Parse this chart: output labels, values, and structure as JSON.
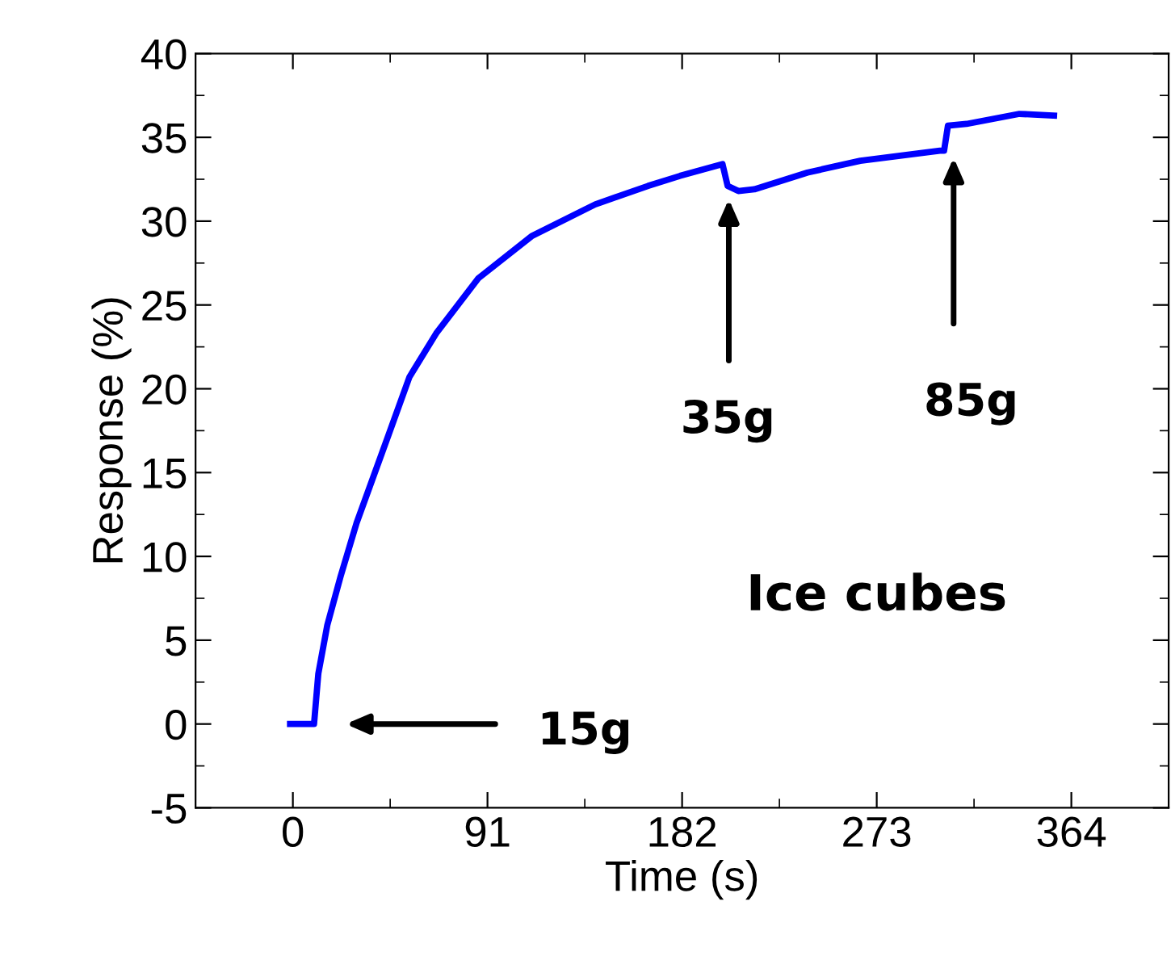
{
  "chart_data": {
    "type": "line",
    "xlabel": "Time (s)",
    "ylabel": "Response (%)",
    "xlim": [
      -45.5,
      409.5
    ],
    "xticks": [
      0,
      91,
      182,
      273,
      364
    ],
    "ylim": [
      -5,
      40
    ],
    "yticks": [
      -5,
      0,
      5,
      10,
      15,
      20,
      25,
      30,
      35,
      40
    ],
    "grid": false,
    "legend": false,
    "marker": "none",
    "line_style": "solid",
    "series": [
      {
        "color": "#0000ff",
        "x": [
          -1.3,
          9.9,
          11.9,
          16.1,
          22.3,
          29.8,
          44.6,
          54.5,
          67,
          86.8,
          111.6,
          141.4,
          166,
          181,
          200.9,
          203.3,
          208.3,
          215.8,
          240.6,
          265.3,
          302.5,
          304.5,
          306.3,
          315,
          339.7,
          355.9
        ],
        "values": [
          0,
          0,
          3.0,
          5.9,
          8.8,
          12.0,
          17.2,
          20.7,
          23.3,
          26.6,
          29.1,
          31.0,
          32.1,
          32.7,
          33.4,
          32.1,
          31.8,
          31.9,
          32.9,
          33.6,
          34.2,
          34.2,
          35.7,
          35.8,
          36.4,
          36.3
        ]
      }
    ],
    "annotations": [
      "15g",
      "35g",
      "85g",
      "Ice cubes"
    ]
  }
}
